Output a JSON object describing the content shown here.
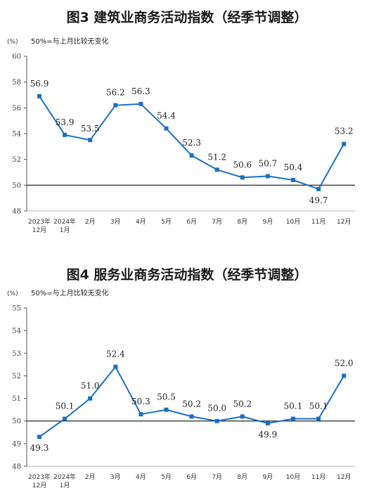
{
  "chart_data": [
    {
      "type": "line",
      "title": "图3 建筑业商务活动指数（经季节调整）",
      "unit_label": "(%)",
      "note": "50%=与上月比较无变化",
      "categories": [
        [
          "2023年",
          "12月"
        ],
        [
          "2024年",
          "1月"
        ],
        [
          "2月"
        ],
        [
          "3月"
        ],
        [
          "4月"
        ],
        [
          "5月"
        ],
        [
          "6月"
        ],
        [
          "7月"
        ],
        [
          "8月"
        ],
        [
          "9月"
        ],
        [
          "10月"
        ],
        [
          "11月"
        ],
        [
          "12月"
        ]
      ],
      "values": [
        56.9,
        53.9,
        53.5,
        56.2,
        56.3,
        54.4,
        52.3,
        51.2,
        50.6,
        50.7,
        50.4,
        49.7,
        53.2
      ],
      "value_labels": [
        "56.9",
        "53.9",
        "53.5",
        "56.2",
        "56.3",
        "54.4",
        "52.3",
        "51.2",
        "50.6",
        "50.7",
        "50.4",
        "49.7",
        "53.2"
      ],
      "ylim": [
        48,
        60
      ],
      "yticks": [
        "48",
        "50",
        "52",
        "54",
        "56",
        "58",
        "60"
      ],
      "reference_line": 50,
      "grid": false,
      "line_color": "#1a6fc4"
    },
    {
      "type": "line",
      "title": "图4 服务业商务活动指数（经季节调整）",
      "unit_label": "(%)",
      "note": "50%=与上月比较无变化",
      "categories": [
        [
          "2023年",
          "12月"
        ],
        [
          "2024年",
          "1月"
        ],
        [
          "2月"
        ],
        [
          "3月"
        ],
        [
          "4月"
        ],
        [
          "5月"
        ],
        [
          "6月"
        ],
        [
          "7月"
        ],
        [
          "8月"
        ],
        [
          "9月"
        ],
        [
          "10月"
        ],
        [
          "11月"
        ],
        [
          "12月"
        ]
      ],
      "values": [
        49.3,
        50.1,
        51.0,
        52.4,
        50.3,
        50.5,
        50.2,
        50.0,
        50.2,
        49.9,
        50.1,
        50.1,
        52.0
      ],
      "value_labels": [
        "49.3",
        "50.1",
        "51.0",
        "52.4",
        "50.3",
        "50.5",
        "50.2",
        "50.0",
        "50.2",
        "49.9",
        "50.1",
        "50.1",
        "52.0"
      ],
      "ylim": [
        48,
        55
      ],
      "yticks": [
        "48",
        "49",
        "50",
        "51",
        "52",
        "53",
        "54",
        "55"
      ],
      "reference_line": 50,
      "grid": false,
      "line_color": "#1a6fc4"
    }
  ]
}
